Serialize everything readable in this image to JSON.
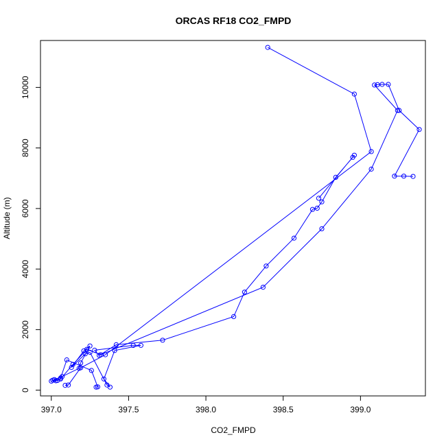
{
  "chart_data": {
    "type": "line",
    "title": "ORCAS RF18 CO2_FMPD",
    "xlabel": "CO2_FMPD",
    "ylabel": "Altitude (m)",
    "xlim": [
      396.93,
      399.42
    ],
    "ylim": [
      -190,
      11550
    ],
    "xticks": [
      "397.0",
      "397.5",
      "398.0",
      "398.5",
      "399.0"
    ],
    "yticks": [
      "0",
      "2000",
      "4000",
      "6000",
      "8000",
      "10000"
    ],
    "grid": false,
    "legend": "none",
    "series_color": "#0000ff",
    "markers": "open-circle",
    "series": [
      {
        "x": [
          397.29,
          397.3,
          397.26,
          397.1,
          397.06,
          397.04,
          397.03,
          397.02,
          397.01,
          397.07,
          397.18,
          397.19,
          397.25,
          397.21,
          397.13,
          397.22,
          397.25,
          397.36,
          397.38,
          397.34,
          397.41,
          397.58,
          397.53,
          397.28,
          397.31,
          397.42,
          397.72,
          398.18,
          398.25,
          398.39,
          398.57,
          398.69,
          398.72,
          398.75,
          398.84,
          398.95,
          398.96,
          398.73
        ],
        "y": [
          100,
          110,
          650,
          1000,
          400,
          320,
          310,
          350,
          330,
          450,
          720,
          900,
          1460,
          1300,
          750,
          1200,
          1250,
          170,
          100,
          370,
          1310,
          1480,
          1480,
          1320,
          1150,
          1500,
          1650,
          2430,
          3240,
          4100,
          5020,
          5970,
          6010,
          6220,
          7030,
          7690,
          7760,
          6340
        ]
      },
      {
        "x": [
          397.0,
          397.06,
          397.14,
          397.23,
          397.32,
          398.37,
          398.75,
          399.07,
          399.24,
          399.09,
          399.11,
          399.14,
          399.18,
          399.25,
          399.38,
          399.22,
          399.28,
          399.34
        ],
        "y": [
          300,
          370,
          850,
          1350,
          1170,
          3400,
          5330,
          7300,
          9240,
          10080,
          10090,
          10100,
          10100,
          9240,
          8610,
          7070,
          7070,
          7060
        ]
      },
      {
        "x": [
          397.09,
          397.11,
          397.19,
          397.35,
          399.07,
          398.96,
          398.4
        ],
        "y": [
          160,
          170,
          740,
          1170,
          7880,
          9780,
          11320
        ]
      }
    ]
  }
}
